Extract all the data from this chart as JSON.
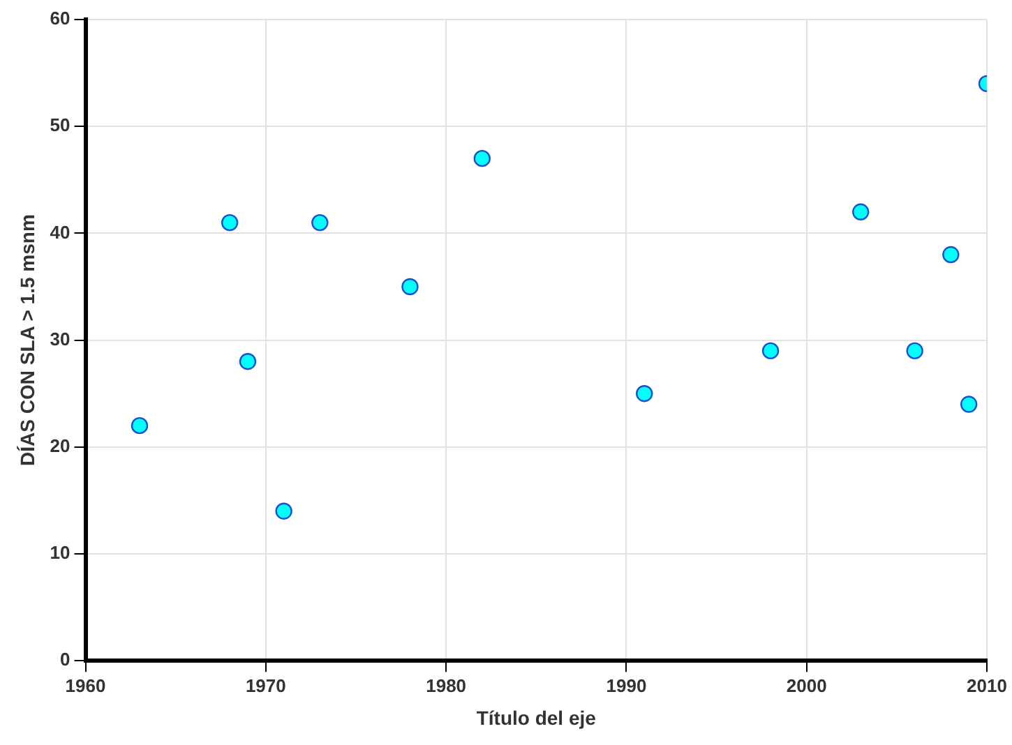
{
  "chart_data": {
    "type": "scatter",
    "xlabel": "Título del eje",
    "ylabel": "DÍAS CON SLA > 1.5 msnm",
    "series": [
      {
        "color": "#00ffff",
        "x": [
          1963,
          1968,
          1969,
          1971,
          1973,
          1978,
          1982,
          1991,
          1998,
          2003,
          2006,
          2008,
          2009,
          2010
        ],
        "values": [
          22,
          41,
          28,
          14,
          41,
          35,
          47,
          25,
          29,
          42,
          29,
          38,
          24,
          54
        ]
      }
    ],
    "xlim": [
      1960,
      2010
    ],
    "xticks": [
      1960,
      1970,
      1980,
      1990,
      2000,
      2010
    ],
    "ylim": [
      0,
      60
    ],
    "yticks": [
      0,
      10,
      20,
      30,
      40,
      50,
      60
    ],
    "grid": true,
    "marker": "circle",
    "legend": false
  }
}
